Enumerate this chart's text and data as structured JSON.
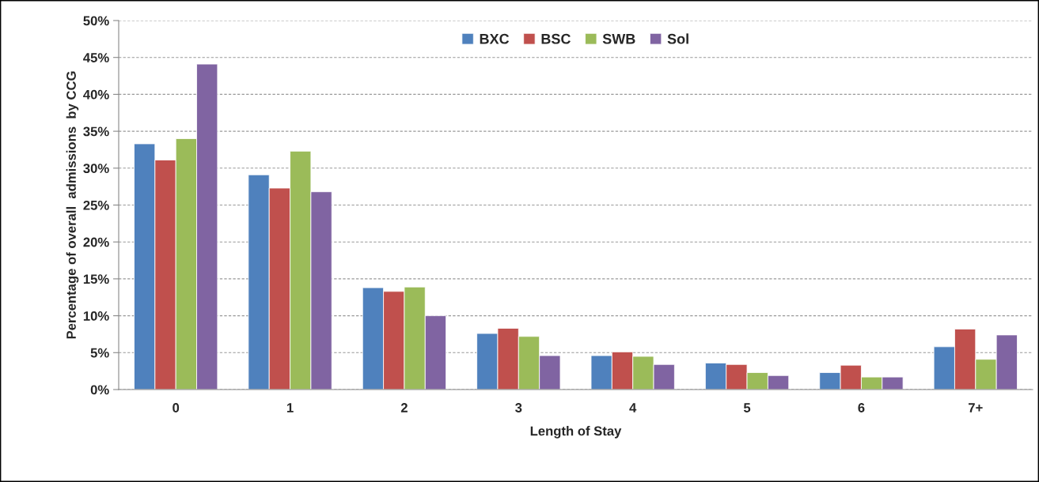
{
  "chart_data": {
    "type": "bar",
    "xlabel": "Length of Stay",
    "ylabel": "Percentage of overall  admissions  by CCG",
    "categories": [
      "0",
      "1",
      "2",
      "3",
      "4",
      "5",
      "6",
      "7+"
    ],
    "series": [
      {
        "name": "BXC",
        "color": "#4f81bd",
        "values": [
          33.3,
          29.1,
          13.8,
          7.6,
          4.6,
          3.6,
          2.3,
          5.8
        ]
      },
      {
        "name": "BSC",
        "color": "#c0504d",
        "values": [
          31.1,
          27.3,
          13.3,
          8.3,
          5.1,
          3.4,
          3.3,
          8.2
        ]
      },
      {
        "name": "SWB",
        "color": "#9bbb59",
        "values": [
          34.0,
          32.3,
          13.9,
          7.2,
          4.5,
          2.3,
          1.7,
          4.1
        ]
      },
      {
        "name": "Sol",
        "color": "#8064a2",
        "values": [
          44.1,
          26.8,
          10.0,
          4.6,
          3.4,
          1.9,
          1.7,
          7.4
        ]
      }
    ],
    "ylim": [
      0,
      50
    ],
    "yticks": [
      {
        "value": 0,
        "label": "0%"
      },
      {
        "value": 5,
        "label": "5%"
      },
      {
        "value": 10,
        "label": "10%"
      },
      {
        "value": 15,
        "label": "15%"
      },
      {
        "value": 20,
        "label": "20%"
      },
      {
        "value": 25,
        "label": "25%"
      },
      {
        "value": 30,
        "label": "30%"
      },
      {
        "value": 35,
        "label": "35%"
      },
      {
        "value": 40,
        "label": "40%"
      },
      {
        "value": 45,
        "label": "45%"
      },
      {
        "value": 50,
        "label": "50%"
      }
    ],
    "grid": "y",
    "legend": "top"
  }
}
